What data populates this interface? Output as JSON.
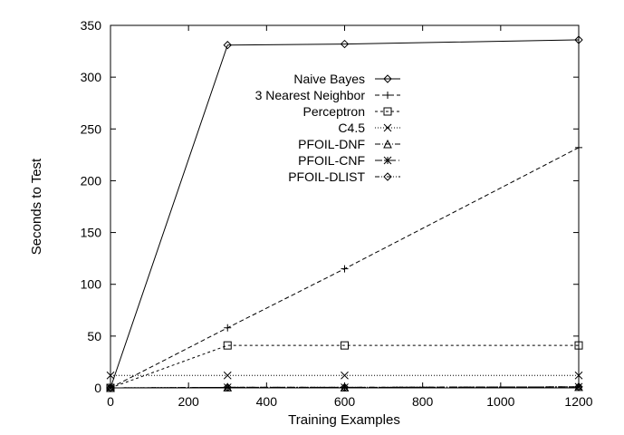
{
  "chart_data": {
    "type": "line",
    "title": "",
    "xlabel": "Training Examples",
    "ylabel": "Seconds to Test",
    "xlim": [
      0,
      1200
    ],
    "ylim": [
      0,
      350
    ],
    "xticks": [
      0,
      200,
      400,
      600,
      800,
      1000,
      1200
    ],
    "yticks": [
      0,
      50,
      100,
      150,
      200,
      250,
      300,
      350
    ],
    "grid": false,
    "legend_position": "top-right",
    "x": [
      0,
      300,
      600,
      1200
    ],
    "series": [
      {
        "name": "Naive Bayes",
        "values": [
          0,
          331,
          332,
          336
        ],
        "marker": "diamond",
        "dash": "solid"
      },
      {
        "name": "3 Nearest Neighbor",
        "values": [
          0,
          58,
          115,
          232
        ],
        "marker": "plus",
        "dash": "dashed"
      },
      {
        "name": "Perceptron",
        "values": [
          0,
          41,
          41,
          41
        ],
        "marker": "square",
        "dash": "shortdash"
      },
      {
        "name": "C4.5",
        "values": [
          12,
          12,
          12,
          12
        ],
        "marker": "cross",
        "dash": "dotted"
      },
      {
        "name": "PFOIL-DNF",
        "values": [
          0,
          0.5,
          0.5,
          1
        ],
        "marker": "triangle",
        "dash": "dashdot"
      },
      {
        "name": "PFOIL-CNF",
        "values": [
          0,
          0.5,
          0.5,
          1
        ],
        "marker": "star",
        "dash": "longdashdot"
      },
      {
        "name": "PFOIL-DLIST",
        "values": [
          0,
          0.5,
          0.5,
          1
        ],
        "marker": "diamond",
        "dash": "dashdotdot"
      }
    ]
  }
}
